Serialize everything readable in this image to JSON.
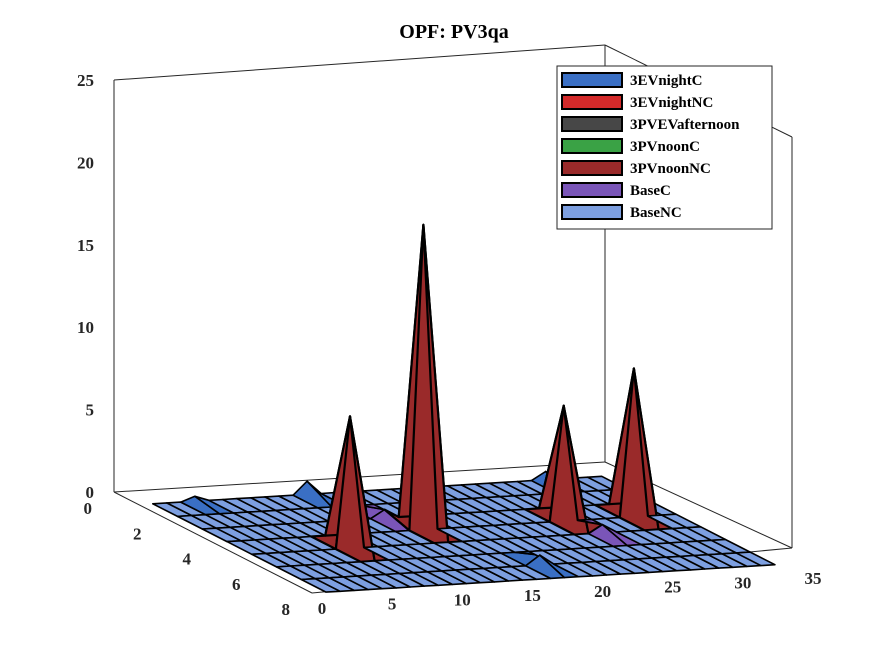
{
  "chart_data": {
    "type": "surface3d",
    "title": "OPF: PV3qa",
    "xlabel": "",
    "ylabel": "",
    "zlabel": "",
    "x_ticks": [
      "0",
      "5",
      "10",
      "15",
      "20",
      "25",
      "30",
      "35"
    ],
    "y_ticks": [
      "0",
      "2",
      "4",
      "6",
      "8"
    ],
    "z_ticks": [
      "0",
      "5",
      "10",
      "15",
      "20",
      "25"
    ],
    "xlim": [
      0,
      35
    ],
    "ylim": [
      0,
      8
    ],
    "zlim": [
      0,
      25
    ],
    "grid": "off",
    "legend_position": "top-right",
    "series": [
      {
        "name": "3EVnightC",
        "color": "#3a6fc4"
      },
      {
        "name": "3EVnightNC",
        "color": "#d42a2a"
      },
      {
        "name": "3PVEVafternoon",
        "color": "#474747"
      },
      {
        "name": "3PVnoonC",
        "color": "#3aa245"
      },
      {
        "name": "3PVnoonNC",
        "color": "#9a2a2a"
      },
      {
        "name": "BaseC",
        "color": "#7a55b8"
      },
      {
        "name": "BaseNC",
        "color": "#7d9fe0"
      }
    ],
    "peaks": [
      {
        "series": "3PVnoonNC",
        "x": 8,
        "y": 5,
        "z": 8
      },
      {
        "series": "3PVnoonNC",
        "x": 15,
        "y": 4,
        "z": 18.5
      },
      {
        "series": "3PVnoonNC",
        "x": 25,
        "y": 4,
        "z": 7
      },
      {
        "series": "3PVnoonNC",
        "x": 30,
        "y": 4,
        "z": 9
      }
    ],
    "bumps": [
      {
        "series": "3EVnightC",
        "x": 12,
        "y": 1,
        "z": 0.8
      },
      {
        "series": "BaseC",
        "x": 14,
        "y": 3,
        "z": 0.5
      },
      {
        "series": "3EVnightC",
        "x": 18,
        "y": 7,
        "z": 0.6
      },
      {
        "series": "BaseC",
        "x": 26,
        "y": 5,
        "z": 0.5
      },
      {
        "series": "3EVnightC",
        "x": 29,
        "y": 1,
        "z": 0.5
      },
      {
        "series": "3EVnightC",
        "x": 4,
        "y": 1,
        "z": 0.3
      }
    ]
  }
}
